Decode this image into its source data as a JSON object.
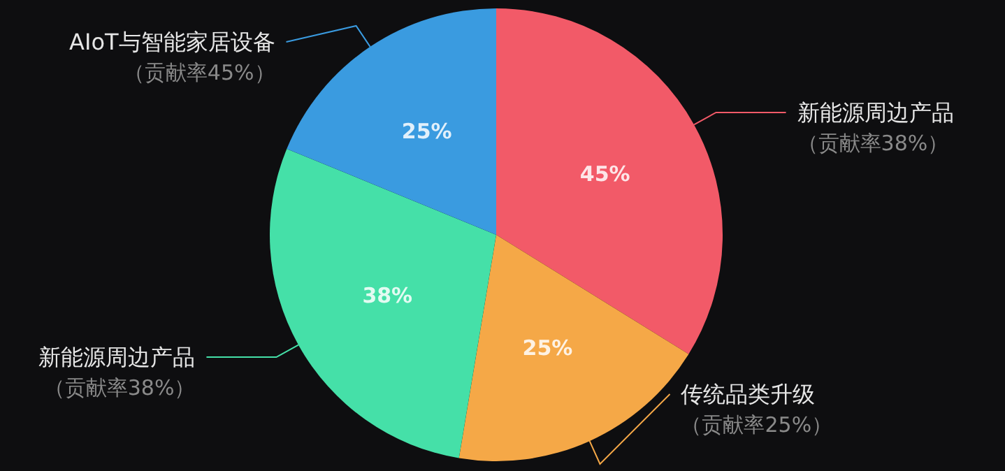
{
  "chart_data": {
    "type": "pie",
    "categories": [
      "新能源周边产品",
      "传统品类升级",
      "新能源周边产品",
      "AIoT与智能家居设备"
    ],
    "values": [
      45,
      25,
      38,
      25
    ],
    "colors": [
      "#f25a68",
      "#f5a847",
      "#45e0a8",
      "#3a9be0"
    ],
    "value_labels": [
      "45%",
      "25%",
      "38%",
      "25%"
    ],
    "annotations": [
      "（贡献率38%）",
      "（贡献率25%）",
      "（贡献率38%）",
      "（贡献率45%）"
    ]
  }
}
